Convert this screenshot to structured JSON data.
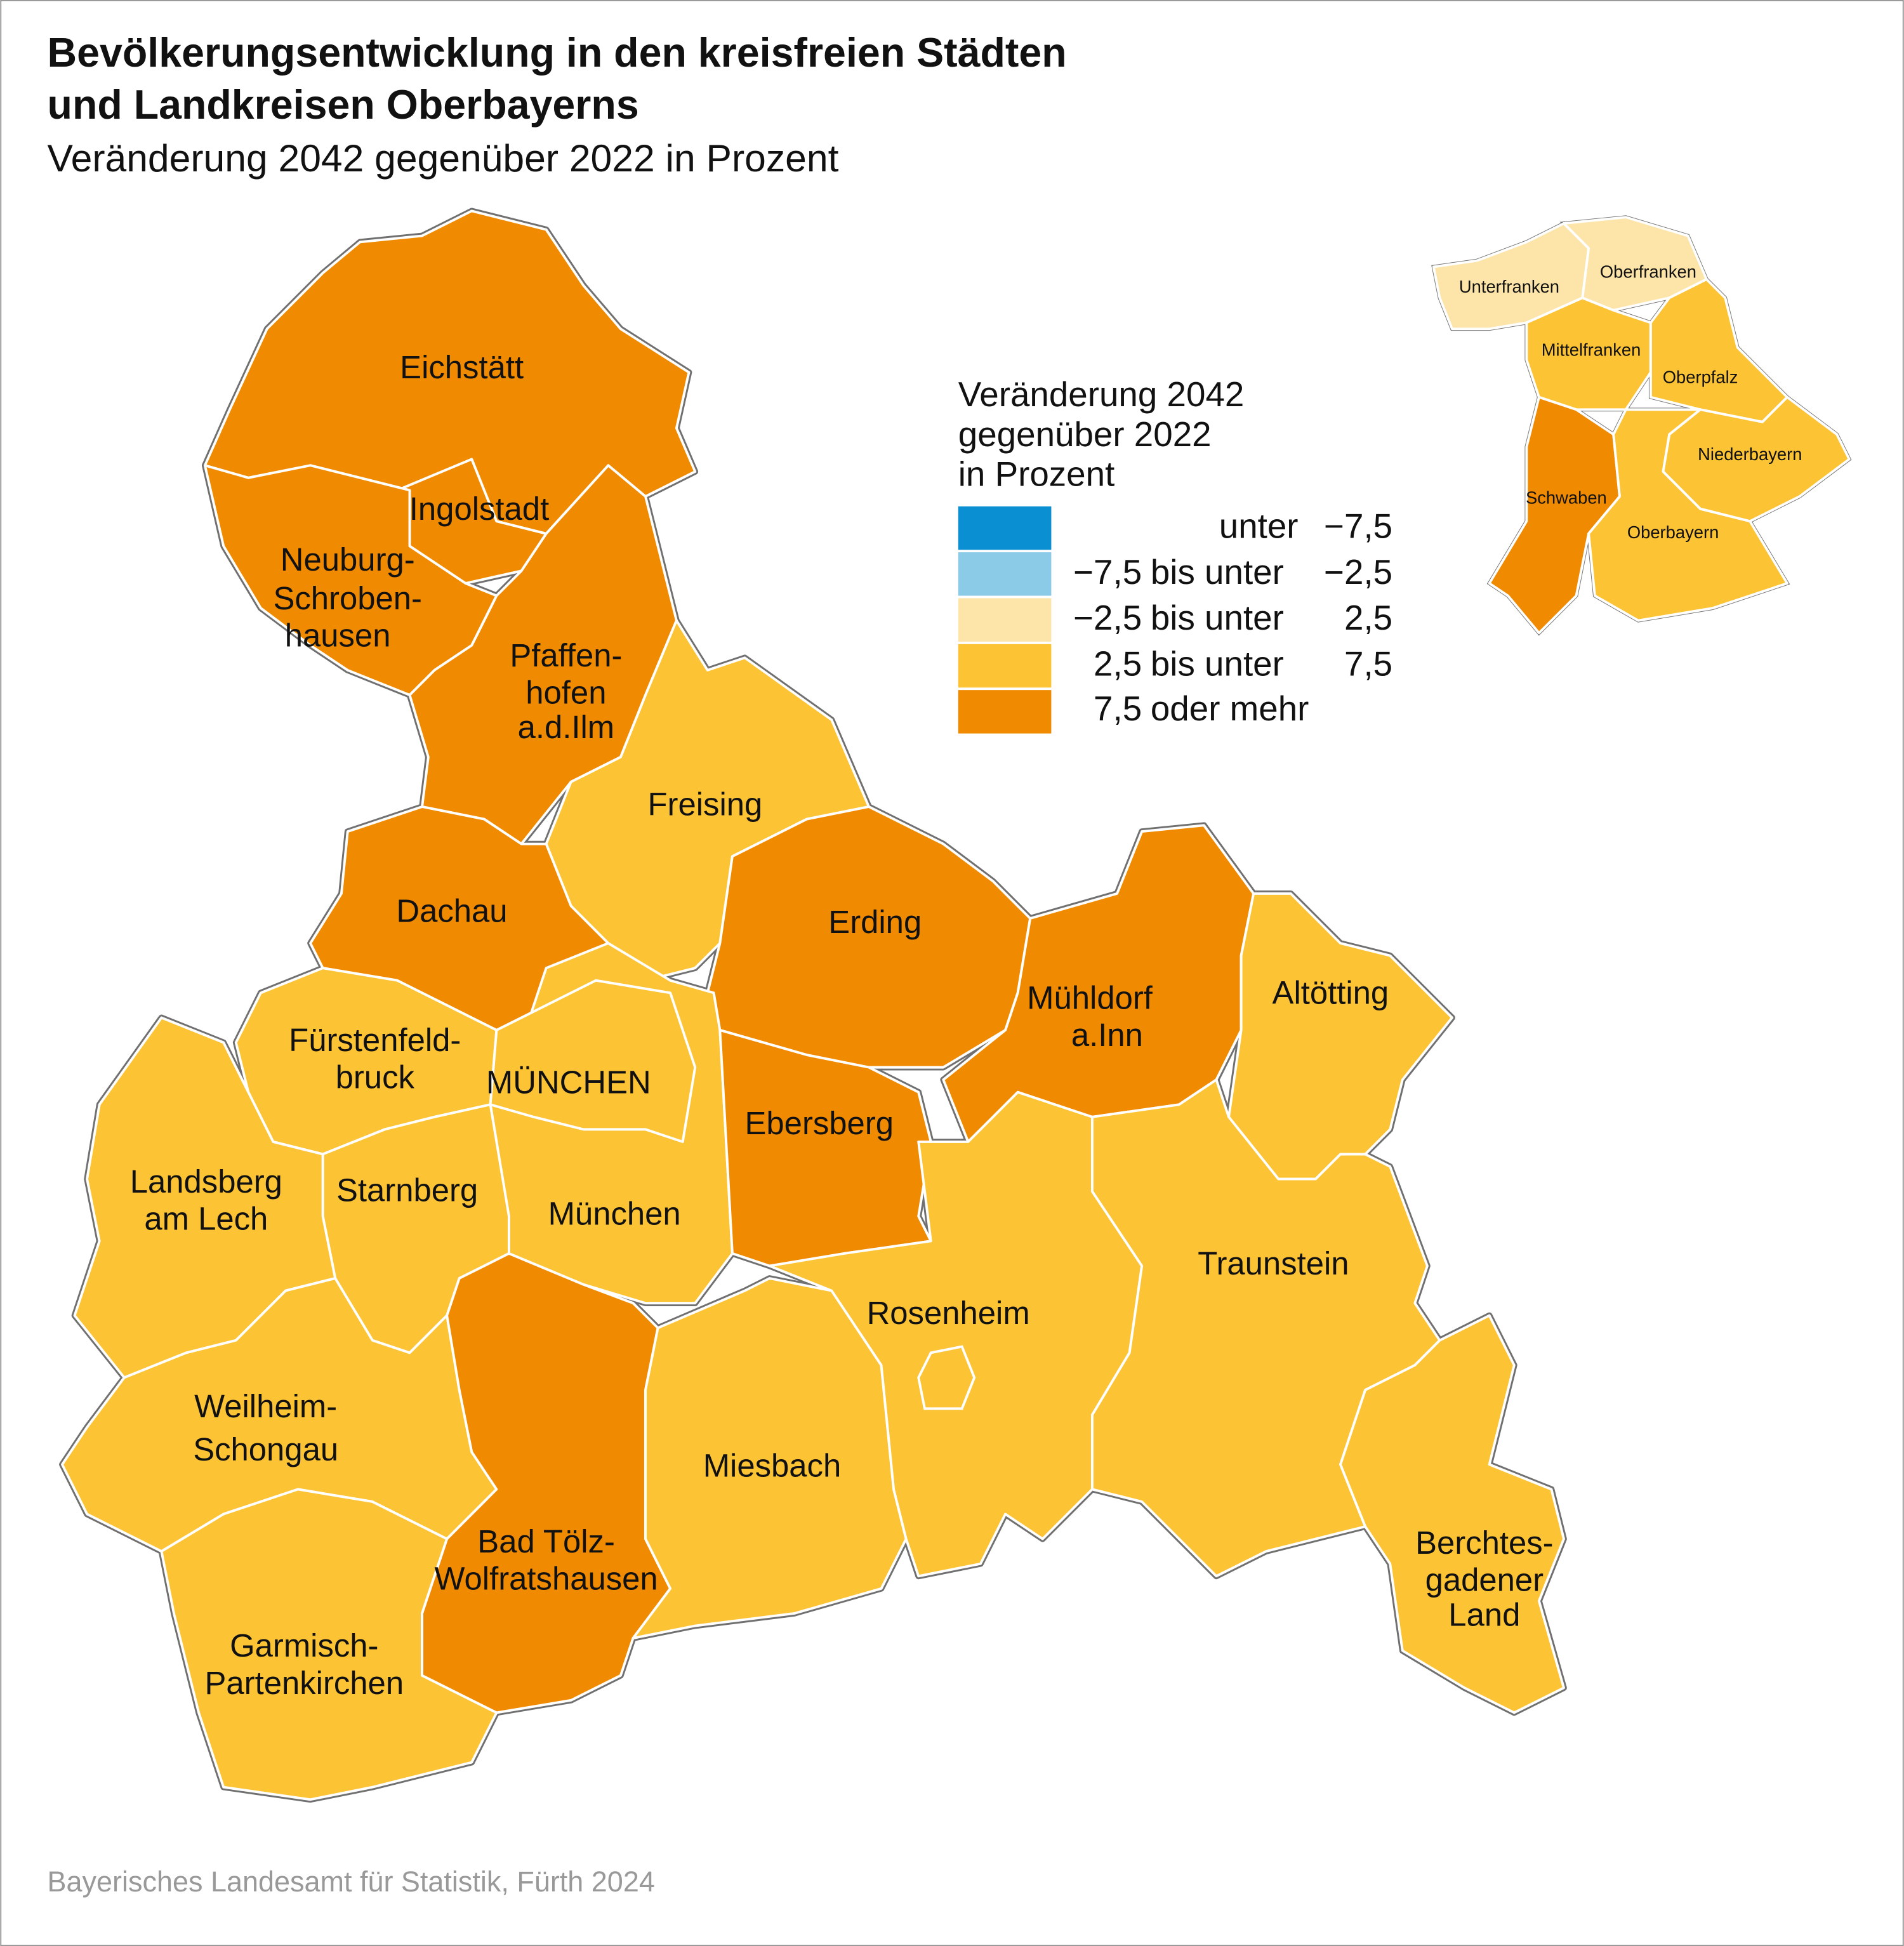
{
  "title": [
    "Bevölkerungsentwicklung in den kreisfreien Städten",
    "und Landkreisen Oberbayerns"
  ],
  "subtitle": "Veränderung 2042 gegenüber 2022 in Prozent",
  "legend": {
    "title": [
      "Veränderung 2042",
      "gegenüber 2022",
      "in Prozent"
    ],
    "items": [
      {
        "color": "#0a8fd2",
        "parts": [
          "unter",
          "−7,5"
        ]
      },
      {
        "color": "#8ccbe8",
        "parts": [
          "−7,5",
          "bis unter",
          "−2,5"
        ]
      },
      {
        "color": "#fde5aa",
        "parts": [
          "−2,5",
          "bis unter",
          "2,5"
        ]
      },
      {
        "color": "#fcc335",
        "parts": [
          "2,5",
          "bis unter",
          "7,5"
        ]
      },
      {
        "color": "#f08a00",
        "parts": [
          "7,5",
          "oder mehr"
        ]
      }
    ]
  },
  "regions": [
    {
      "name": [
        "Eichstätt"
      ],
      "color": "#f08a00"
    },
    {
      "name": [
        "Ingolstadt"
      ],
      "color": "#f08a00"
    },
    {
      "name": [
        "Neuburg-",
        "Schroben-",
        "hausen"
      ],
      "color": "#f08a00"
    },
    {
      "name": [
        "Pfaffen-",
        "hofen",
        "a.d.Ilm"
      ],
      "color": "#f08a00"
    },
    {
      "name": [
        "Freising"
      ],
      "color": "#fcc335"
    },
    {
      "name": [
        "Dachau"
      ],
      "color": "#f08a00"
    },
    {
      "name": [
        "Erding"
      ],
      "color": "#f08a00"
    },
    {
      "name": [
        "Mühldorf",
        "a.Inn"
      ],
      "color": "#f08a00"
    },
    {
      "name": [
        "Altötting"
      ],
      "color": "#fcc335"
    },
    {
      "name": [
        "Fürstenfeld-",
        "bruck"
      ],
      "color": "#fcc335"
    },
    {
      "name": [
        "München"
      ],
      "color": "#fcc335"
    },
    {
      "name": [
        "MÜNCHEN"
      ],
      "color": "#fcc335"
    },
    {
      "name": [
        "Ebersberg"
      ],
      "color": "#f08a00"
    },
    {
      "name": [
        "Starnberg"
      ],
      "color": "#fcc335"
    },
    {
      "name": [
        "Landsberg",
        "am Lech"
      ],
      "color": "#fcc335"
    },
    {
      "name": [
        "Weilheim-",
        "Schongau"
      ],
      "color": "#fcc335"
    },
    {
      "name": [
        "Garmisch-",
        "Partenkirchen"
      ],
      "color": "#fcc335"
    },
    {
      "name": [
        "Bad Tölz-",
        "Wolfratshausen"
      ],
      "color": "#f08a00"
    },
    {
      "name": [
        "Miesbach"
      ],
      "color": "#fcc335"
    },
    {
      "name": [
        "Rosenheim"
      ],
      "color": "#fcc335"
    },
    {
      "name": [
        "Traunstein"
      ],
      "color": "#fcc335"
    },
    {
      "name": [
        "Berchtes-",
        "gadener",
        "Land"
      ],
      "color": "#fcc335"
    }
  ],
  "inset": [
    {
      "name": "Unterfranken",
      "color": "#fde5aa"
    },
    {
      "name": "Oberfranken",
      "color": "#fde5aa"
    },
    {
      "name": "Mittelfranken",
      "color": "#fcc335"
    },
    {
      "name": "Oberpfalz",
      "color": "#fcc335"
    },
    {
      "name": "Niederbayern",
      "color": "#fcc335"
    },
    {
      "name": "Schwaben",
      "color": "#f08a00"
    },
    {
      "name": "Oberbayern",
      "color": "#fcc335"
    }
  ],
  "source": "Bayerisches Landesamt für Statistik, Fürth 2024"
}
